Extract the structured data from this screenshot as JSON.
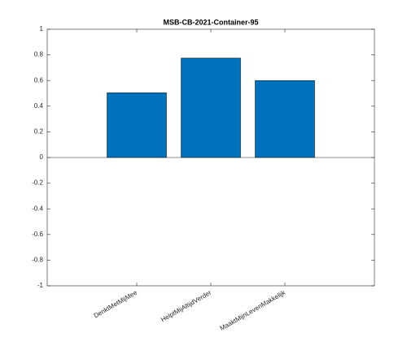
{
  "chart_data": {
    "type": "bar",
    "title": "MSB-CB-2021-Container-95",
    "categories": [
      "DenktMetMijMee",
      "HelptMijAltijdVerder",
      "MaaktMijnLevenMakkelijk"
    ],
    "values": [
      0.505,
      0.775,
      0.6
    ],
    "color": "#0072bd",
    "ylim": [
      -1,
      1
    ],
    "yticks": [
      -1,
      -0.8,
      -0.6,
      -0.4,
      -0.2,
      0,
      0.2,
      0.4,
      0.6,
      0.8,
      1
    ],
    "grid": false
  }
}
